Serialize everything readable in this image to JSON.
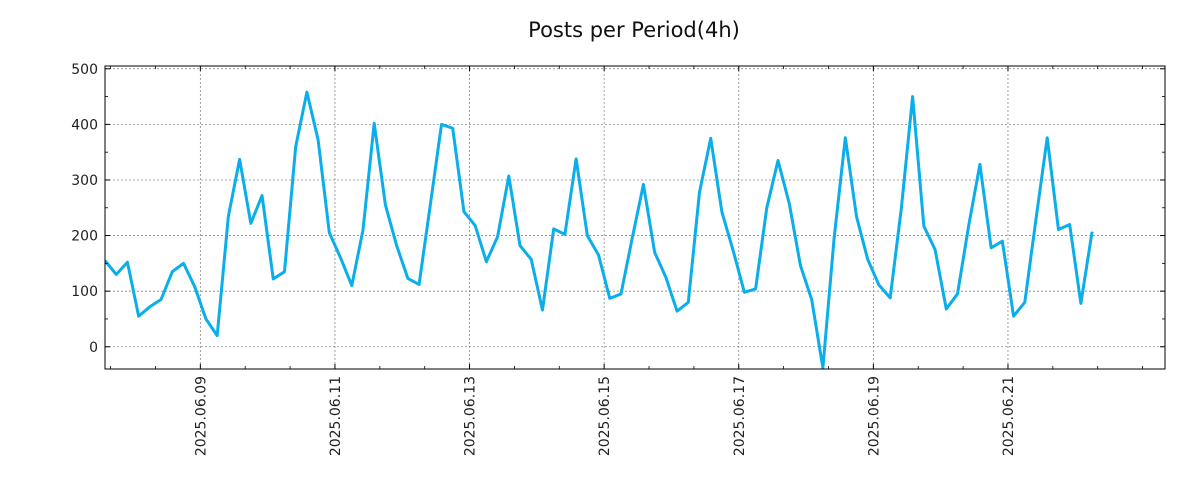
{
  "chart_data": {
    "type": "line",
    "title": "Posts per Period(4h)",
    "xlabel": "",
    "ylabel": "",
    "ylim": [
      -40,
      505
    ],
    "xlim": [
      0,
      94.5
    ],
    "grid": true,
    "legend": "none",
    "y_ticks": [
      0,
      100,
      200,
      300,
      400,
      500
    ],
    "x_ticks": [
      {
        "label": "2025.06.09",
        "x": 8.5
      },
      {
        "label": "2025.06.11",
        "x": 20.5
      },
      {
        "label": "2025.06.13",
        "x": 32.5
      },
      {
        "label": "2025.06.15",
        "x": 44.5
      },
      {
        "label": "2025.06.17",
        "x": 56.5
      },
      {
        "label": "2025.06.19",
        "x": 68.5
      },
      {
        "label": "2025.06.21",
        "x": 80.5
      }
    ],
    "series": [
      {
        "name": "posts",
        "color": "#0aaeea",
        "values": [
          155,
          130,
          152,
          55,
          72,
          85,
          135,
          150,
          108,
          50,
          20,
          235,
          337,
          222,
          272,
          122,
          135,
          360,
          458,
          372,
          205,
          160,
          110,
          210,
          402,
          255,
          182,
          123,
          112,
          255,
          400,
          393,
          243,
          218,
          153,
          198,
          307,
          182,
          157,
          66,
          212,
          202,
          338,
          200,
          165,
          87,
          95,
          195,
          292,
          170,
          125,
          64,
          80,
          278,
          375,
          242,
          173,
          98,
          104,
          250,
          335,
          258,
          146,
          85,
          -38,
          195,
          376,
          234,
          157,
          111,
          88,
          250,
          450,
          217,
          175,
          68,
          95,
          218,
          328,
          178,
          190,
          55,
          80,
          230,
          376,
          211,
          220,
          78,
          207
        ]
      }
    ]
  }
}
